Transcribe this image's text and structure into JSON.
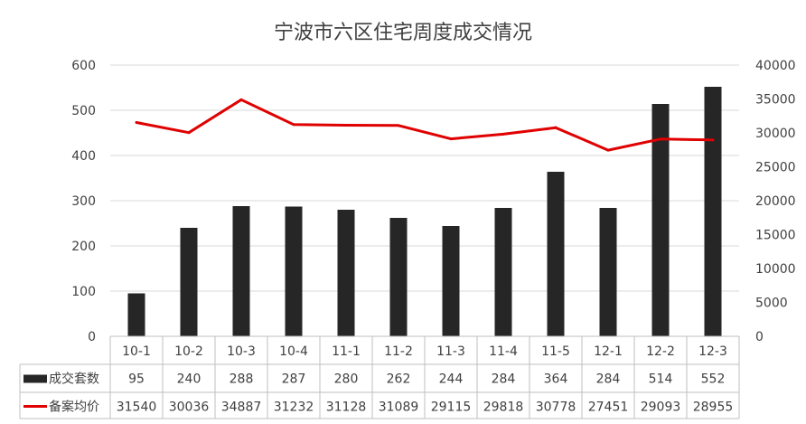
{
  "chart_data": {
    "type": "bar+line",
    "title": "宁波市六区住宅周度成交情况",
    "categories": [
      "10-1",
      "10-2",
      "10-3",
      "10-4",
      "11-1",
      "11-2",
      "11-3",
      "11-4",
      "11-5",
      "12-1",
      "12-2",
      "12-3"
    ],
    "series": [
      {
        "name": "成交套数",
        "type": "bar",
        "axis": "left",
        "color": "#262626",
        "values": [
          95,
          240,
          288,
          287,
          280,
          262,
          244,
          284,
          364,
          284,
          514,
          552
        ]
      },
      {
        "name": "备案均价",
        "type": "line",
        "axis": "right",
        "color": "#e00000",
        "values": [
          31540,
          30036,
          34887,
          31232,
          31128,
          31089,
          29115,
          29818,
          30778,
          27451,
          29093,
          28955
        ]
      }
    ],
    "y_left": {
      "min": 0,
      "max": 600,
      "ticks": [
        "0",
        "100",
        "200",
        "300",
        "400",
        "500",
        "600"
      ]
    },
    "y_right": {
      "min": 0,
      "max": 40000,
      "ticks": [
        "0",
        "5000",
        "10000",
        "15000",
        "20000",
        "25000",
        "30000",
        "35000",
        "40000"
      ]
    },
    "grid": true,
    "legend": "data-table"
  }
}
